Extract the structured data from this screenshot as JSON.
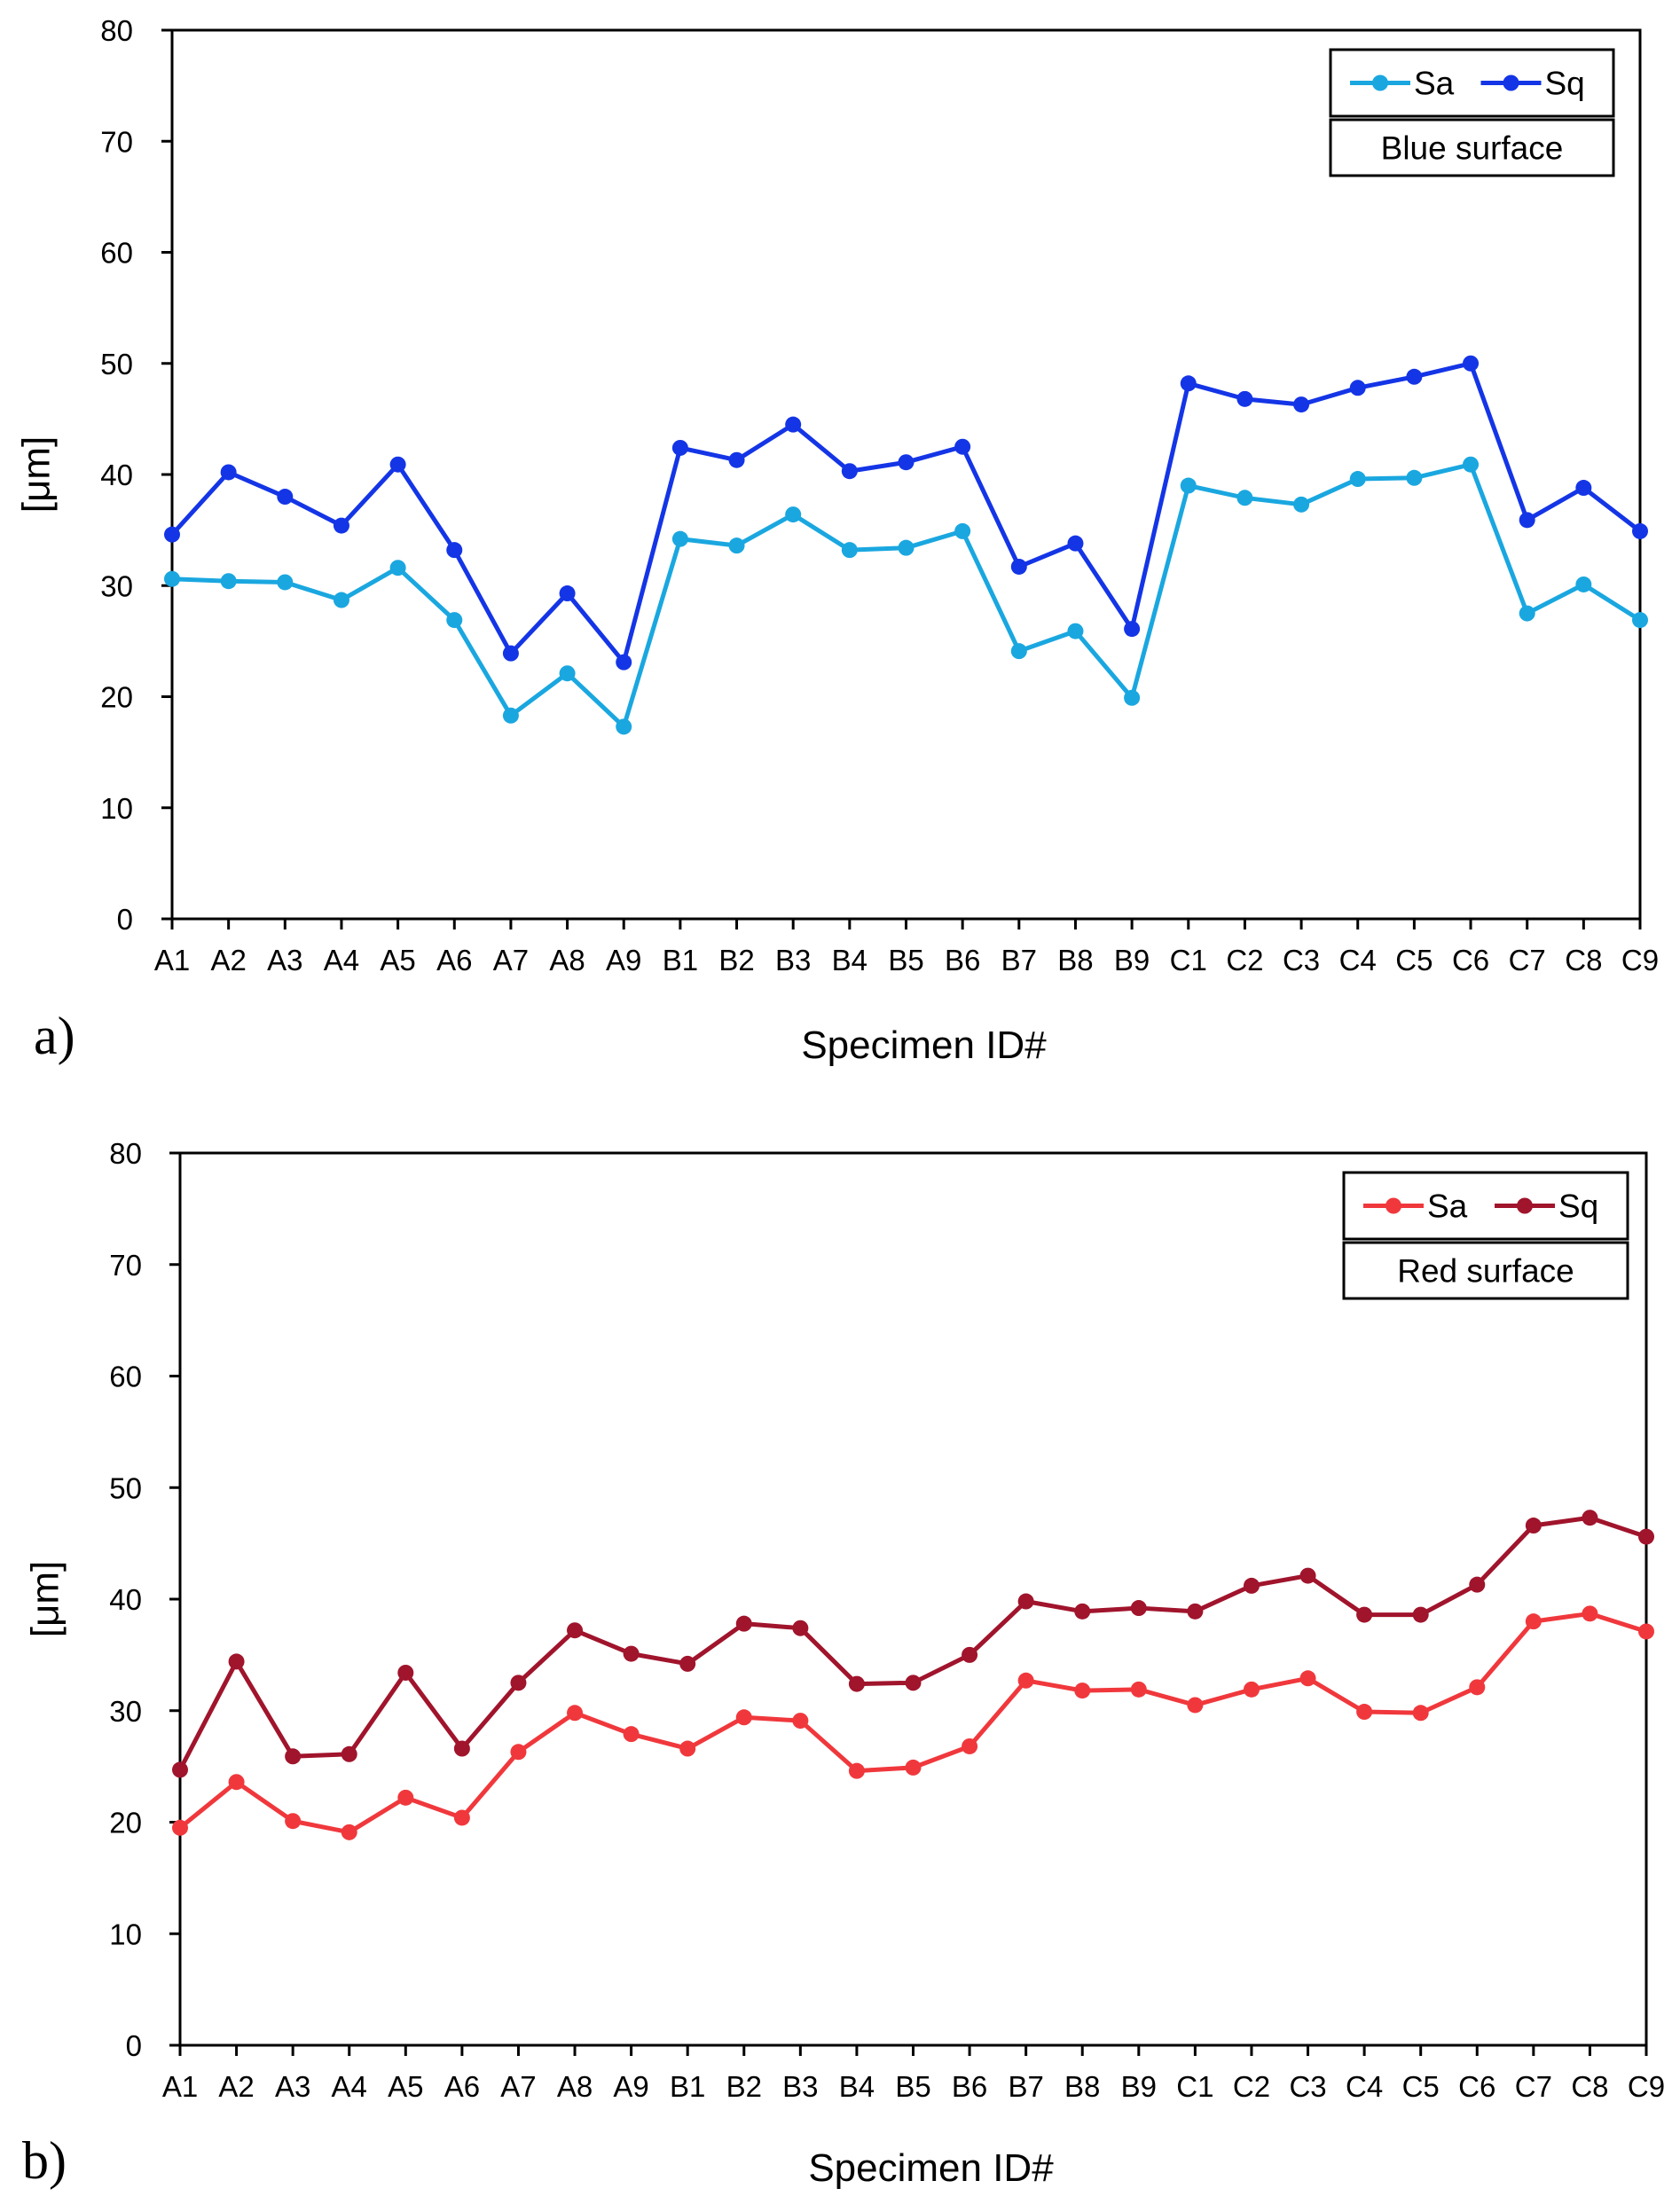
{
  "chart_data": [
    {
      "type": "line",
      "panel_label": "a)",
      "title": "",
      "xlabel": "Specimen ID#",
      "ylabel": "[μm]",
      "ylim": [
        0,
        80
      ],
      "yticks": [
        0,
        10,
        20,
        30,
        40,
        50,
        60,
        70,
        80
      ],
      "grid": false,
      "legend_placement": "top-right",
      "legend_note": "Blue surface",
      "categories": [
        "A1",
        "A2",
        "A3",
        "A4",
        "A5",
        "A6",
        "A7",
        "A8",
        "A9",
        "B1",
        "B2",
        "B3",
        "B4",
        "B5",
        "B6",
        "B7",
        "B8",
        "B9",
        "C1",
        "C2",
        "C3",
        "C4",
        "C5",
        "C6",
        "C7",
        "C8",
        "C9"
      ],
      "series": [
        {
          "name": "Sa",
          "color": "#1aa7e0",
          "values": [
            30.6,
            30.4,
            30.3,
            28.7,
            31.6,
            26.9,
            18.3,
            22.1,
            17.3,
            34.2,
            33.6,
            36.4,
            33.2,
            33.4,
            34.9,
            24.1,
            25.9,
            19.9,
            39.0,
            37.9,
            37.3,
            39.6,
            39.7,
            40.9,
            27.5,
            30.1,
            26.9
          ]
        },
        {
          "name": "Sq",
          "color": "#1435e6",
          "values": [
            34.6,
            40.2,
            38.0,
            35.4,
            40.9,
            33.2,
            23.9,
            29.3,
            23.1,
            42.4,
            41.3,
            44.5,
            40.3,
            41.1,
            42.5,
            31.7,
            33.8,
            26.1,
            48.2,
            46.8,
            46.3,
            47.8,
            48.8,
            50.0,
            35.9,
            38.8,
            34.9
          ]
        }
      ]
    },
    {
      "type": "line",
      "panel_label": "b)",
      "title": "",
      "xlabel": "Specimen ID#",
      "ylabel": "[μm]",
      "ylim": [
        0,
        80
      ],
      "yticks": [
        0,
        10,
        20,
        30,
        40,
        50,
        60,
        70,
        80
      ],
      "grid": false,
      "legend_placement": "top-right",
      "legend_note": "Red surface",
      "categories": [
        "A1",
        "A2",
        "A3",
        "A4",
        "A5",
        "A6",
        "A7",
        "A8",
        "A9",
        "B1",
        "B2",
        "B3",
        "B4",
        "B5",
        "B6",
        "B7",
        "B8",
        "B9",
        "C1",
        "C2",
        "C3",
        "C4",
        "C5",
        "C6",
        "C7",
        "C8",
        "C9"
      ],
      "series": [
        {
          "name": "Sa",
          "color": "#f0383c",
          "values": [
            19.5,
            23.6,
            20.1,
            19.1,
            22.2,
            20.4,
            26.3,
            29.8,
            27.9,
            26.6,
            29.4,
            29.1,
            24.6,
            24.9,
            26.8,
            32.7,
            31.8,
            31.9,
            30.5,
            31.9,
            32.9,
            29.9,
            29.8,
            32.1,
            38.0,
            38.7,
            37.1
          ]
        },
        {
          "name": "Sq",
          "color": "#a0142c",
          "values": [
            24.7,
            34.4,
            25.9,
            26.1,
            33.4,
            26.6,
            32.5,
            37.2,
            35.1,
            34.2,
            37.8,
            37.4,
            32.4,
            32.5,
            35.0,
            39.8,
            38.9,
            39.2,
            38.9,
            41.2,
            42.1,
            38.6,
            38.6,
            41.3,
            46.6,
            47.3,
            45.6
          ]
        }
      ]
    }
  ]
}
